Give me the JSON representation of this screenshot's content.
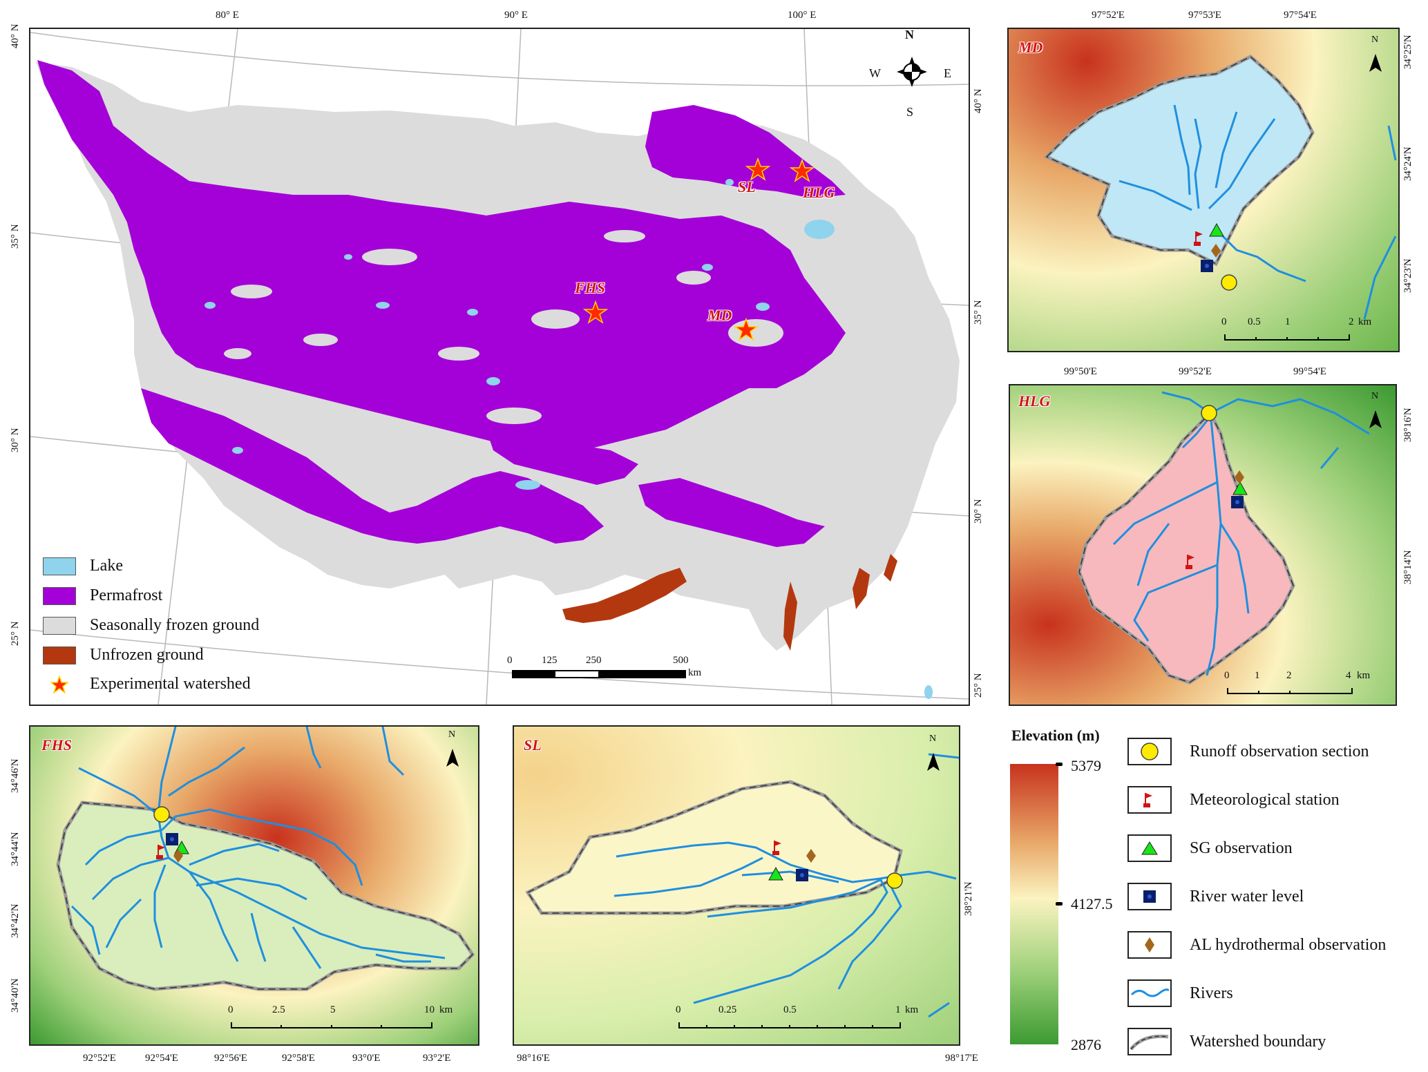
{
  "main_map": {
    "lon_labels": [
      "80° E",
      "90° E",
      "100° E"
    ],
    "lat_labels_left": [
      "40° N",
      "35° N",
      "30° N",
      "25° N"
    ],
    "lat_labels_right": [
      "40° N",
      "35° N",
      "30° N",
      "25° N"
    ],
    "compass": {
      "n": "N",
      "s": "S",
      "e": "E",
      "w": "W"
    },
    "sites": [
      "SL",
      "HLG",
      "FHS",
      "MD"
    ],
    "legend": [
      {
        "label": "Lake",
        "color": "#8fd3ec"
      },
      {
        "label": "Permafrost",
        "color": "#a400d8"
      },
      {
        "label": "Seasonally frozen ground",
        "color": "#dcdcdc"
      },
      {
        "label": "Unfrozen ground",
        "color": "#b4380f"
      },
      {
        "label": "Experimental watershed",
        "icon": "star-icon"
      }
    ],
    "scalebar": {
      "ticks": [
        "0",
        "125",
        "250",
        "500"
      ],
      "unit": "km"
    }
  },
  "md": {
    "name": "MD",
    "lon_labels": [
      "97°52'E",
      "97°53'E",
      "97°54'E"
    ],
    "lat_labels": [
      "34°25'N",
      "34°24'N",
      "34°23'N"
    ],
    "north": "N",
    "scalebar": {
      "ticks": [
        "0",
        "0.5",
        "1",
        "2"
      ],
      "unit": "km"
    },
    "fill": "#bfe7f5"
  },
  "hlg": {
    "name": "HLG",
    "lon_labels": [
      "99°50'E",
      "99°52'E",
      "99°54'E"
    ],
    "lat_labels": [
      "38°16'N",
      "38°14'N"
    ],
    "north": "N",
    "scalebar": {
      "ticks": [
        "0",
        "1",
        "2",
        "4"
      ],
      "unit": "km"
    },
    "fill": "#f7b9bd"
  },
  "fhs": {
    "name": "FHS",
    "lon_labels": [
      "92°52'E",
      "92°54'E",
      "92°56'E",
      "92°58'E",
      "93°0'E",
      "93°2'E"
    ],
    "lat_labels": [
      "34°46'N",
      "34°44'N",
      "34°42'N",
      "34°40'N"
    ],
    "north": "N",
    "scalebar": {
      "ticks": [
        "0",
        "2.5",
        "5",
        "10"
      ],
      "unit": "km"
    },
    "fill": "#d9eebc"
  },
  "sl": {
    "name": "SL",
    "lon_labels": [
      "98°16'E",
      "98°17'E"
    ],
    "lat_labels": [
      "38°21'N"
    ],
    "north": "N",
    "scalebar": {
      "ticks": [
        "0",
        "0.25",
        "0.5",
        "1"
      ],
      "unit": "km"
    },
    "fill": "#fbf6c8"
  },
  "elevation": {
    "title": "Elevation (m)",
    "max": "5379",
    "mid": "4127.5",
    "min": "2876",
    "colors": [
      "#c8321e",
      "#e8a868",
      "#fbf3c0",
      "#9ed07a",
      "#3c9a32"
    ]
  },
  "symbols": [
    {
      "label": "Runoff observation section",
      "icon": "yellow-circle-icon"
    },
    {
      "label": "Meteorological station",
      "icon": "red-flag-icon"
    },
    {
      "label": "SG observation",
      "icon": "green-triangle-icon"
    },
    {
      "label": "River water level",
      "icon": "navy-square-icon"
    },
    {
      "label": "AL hydrothermal observation",
      "icon": "brown-diamond-icon"
    },
    {
      "label": "Rivers",
      "icon": "river-line-icon"
    },
    {
      "label": "Watershed boundary",
      "icon": "boundary-line-icon"
    }
  ]
}
